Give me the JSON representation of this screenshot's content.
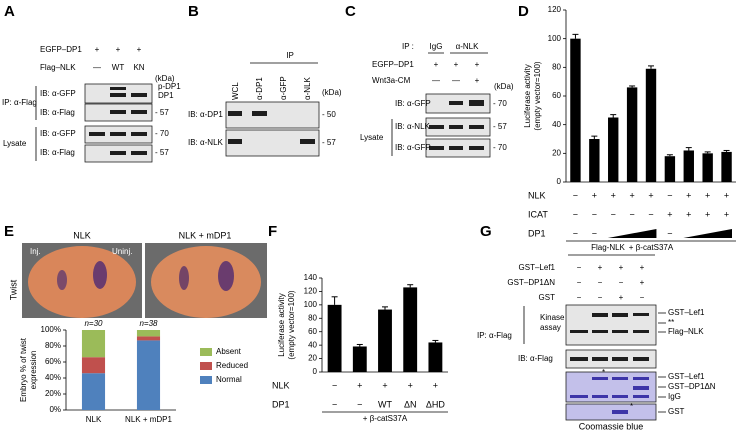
{
  "panel_a": {
    "letter": "A",
    "egfp": "EGFP–DP1",
    "egfp_signs": [
      "+",
      "+",
      "+"
    ],
    "flag": "Flag–NLK",
    "flag_signs": [
      "—",
      "WT",
      "KN"
    ],
    "kda": "(kDa)",
    "ip": "IP: α-Flag",
    "lysate": "Lysate",
    "blots": [
      "IB: α-GFP",
      "IB: α-Flag",
      "IB: α-GFP",
      "IB: α-Flag"
    ],
    "band_labels": [
      "p-DP1",
      "DP1"
    ],
    "markers": [
      "- 57",
      "- 70",
      "- 57"
    ]
  },
  "panel_b": {
    "letter": "B",
    "ip": "IP",
    "lanes": [
      "WCL",
      "α-DP1",
      "α-GFP",
      "α-NLK"
    ],
    "kda": "(kDa)",
    "blots": [
      "IB: α-DP1",
      "IB: α-NLK"
    ],
    "markers": [
      "- 50",
      "- 57"
    ]
  },
  "panel_c": {
    "letter": "C",
    "ip": "IP :",
    "lanes": [
      "IgG",
      "α-NLK"
    ],
    "egfp": "EGFP–DP1",
    "egfp_signs": [
      "+",
      "+",
      "+"
    ],
    "wnt": "Wnt3a-CM",
    "wnt_signs": [
      "—",
      "—",
      "+"
    ],
    "kda": "(kDa)",
    "blots": [
      "IB: α-GFP",
      "IB: α-NLK",
      "IB: α-GFP"
    ],
    "lysate": "Lysate",
    "markers": [
      "- 70",
      "- 57",
      "- 70"
    ]
  },
  "panel_e": {
    "letter": "E",
    "images": [
      "NLK",
      "NLK + mDP1"
    ],
    "row": "Twist",
    "inj": "Inj.",
    "uninj": "Uninj."
  },
  "panel_g": {
    "letter": "G",
    "header": "Flag-NLK",
    "rows": [
      {
        "name": "GST–Lef1",
        "signs": [
          "−",
          "+",
          "+",
          "+"
        ]
      },
      {
        "name": "GST–DP1ΔN",
        "signs": [
          "−",
          "−",
          "−",
          "+"
        ]
      },
      {
        "name": "GST",
        "signs": [
          "−",
          "−",
          "+",
          "−"
        ]
      }
    ],
    "ip": "IP: α-Flag",
    "kinase": [
      "Kinase",
      "assay"
    ],
    "ib": "IB: α-Flag",
    "kinase_labels": [
      "GST–Lef1",
      "**",
      "Flag–NLK"
    ],
    "coomassie_labels": [
      "GST–Lef1",
      "GST–DP1ΔN",
      "IgG",
      "GST"
    ],
    "stars": [
      "*",
      "*"
    ],
    "caption": "Coomassie blue"
  },
  "chart_data": [
    {
      "type": "bar",
      "panel": "D",
      "ylabel": [
        "Luciferase activity",
        "(empty vector=100)"
      ],
      "values": [
        100,
        30,
        45,
        66,
        79,
        18,
        22,
        20,
        21
      ],
      "errors": [
        3,
        2,
        2,
        1,
        2,
        1,
        2,
        1,
        1
      ],
      "color": "#000000",
      "ylim": [
        0,
        120
      ],
      "yticks": [
        0,
        20,
        40,
        60,
        80,
        100,
        120
      ],
      "rows": [
        {
          "name": "NLK",
          "labels": [
            "−",
            "+",
            "+",
            "+",
            "+",
            "−",
            "+",
            "+",
            "+"
          ]
        },
        {
          "name": "ICAT",
          "labels": [
            "−",
            "−",
            "−",
            "−",
            "−",
            "+",
            "+",
            "+",
            "+"
          ]
        },
        {
          "name": "DP1",
          "labels": [
            "−",
            "−",
            null,
            null,
            null,
            "−",
            null,
            null,
            null
          ]
        }
      ],
      "note": "+ β-catS37A"
    },
    {
      "type": "stacked_bar",
      "panel": "",
      "ylabel": [
        "Embryo % of twist",
        "expression"
      ],
      "categories": [
        "NLK",
        "NLK + mDP1"
      ],
      "annotations": [
        "n=30",
        "n=38"
      ],
      "series": [
        {
          "name": "Normal",
          "color": "#4f81bd",
          "values": [
            46,
            87
          ]
        },
        {
          "name": "Reduced",
          "color": "#c0504d",
          "values": [
            20,
            5
          ]
        },
        {
          "name": "Absent",
          "color": "#9bbb59",
          "values": [
            34,
            8
          ]
        }
      ],
      "ylim": [
        0,
        100
      ],
      "yticks": [
        {
          "value": 0,
          "label": "0%"
        },
        {
          "value": 20,
          "label": "20%"
        },
        {
          "value": 40,
          "label": "40%"
        },
        {
          "value": 60,
          "label": "60%"
        },
        {
          "value": 80,
          "label": "80%"
        },
        {
          "value": 100,
          "label": "100%"
        }
      ]
    },
    {
      "type": "bar",
      "panel": "F",
      "ylabel": [
        "Luciferase activity",
        "(empty vector=100)"
      ],
      "values": [
        100,
        38,
        93,
        126,
        44
      ],
      "errors": [
        12,
        3,
        4,
        4,
        3
      ],
      "color": "#000000",
      "ylim": [
        0,
        140
      ],
      "yticks": [
        0,
        20,
        40,
        60,
        80,
        100,
        120,
        140
      ],
      "rows": [
        {
          "name": "NLK",
          "labels": [
            "−",
            "+",
            "+",
            "+",
            "+"
          ]
        },
        {
          "name": "DP1",
          "labels": [
            "−",
            "−",
            "WT",
            "ΔN",
            "ΔHD"
          ]
        }
      ],
      "note": "+ β-catS37A"
    }
  ]
}
